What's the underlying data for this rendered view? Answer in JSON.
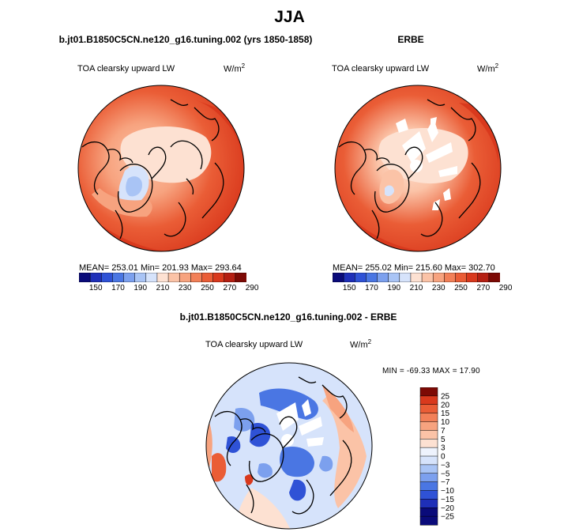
{
  "chart_data": {
    "type": "polar-contour-map",
    "season": "JJA",
    "colors_main": [
      "#0a0b7a",
      "#1e2fb8",
      "#2f52d6",
      "#4a76e3",
      "#7ca0ee",
      "#a9c4f5",
      "#d6e3fb",
      "#fde1d2",
      "#fbc3a7",
      "#f7a37f",
      "#f28058",
      "#ea5d36",
      "#d9391d",
      "#b51f12",
      "#7d0a05"
    ],
    "colors_diff": [
      "#0a0b7a",
      "#1e2fb8",
      "#2f52d6",
      "#4a76e3",
      "#7ca0ee",
      "#a9c4f5",
      "#d6e3fb",
      "#eef3fd",
      "#fde1d2",
      "#fbc3a7",
      "#f7a37f",
      "#f28058",
      "#ea5d36",
      "#d9391d",
      "#7d0a05"
    ],
    "panels": [
      {
        "name": "model",
        "case_title": "b.jt01.B1850C5CN.ne120_g16.tuning.002 (yrs 1850-1858)",
        "variable": "TOA clearsky upward LW",
        "units_base": "W/m",
        "units_exp": "2",
        "stats": "MEAN= 253.01  Min= 201.93  Max= 293.64",
        "mean": 253.01,
        "min": 201.93,
        "max": 293.64,
        "colorbar_ticks": [
          "150",
          "170",
          "190",
          "210",
          "230",
          "250",
          "270",
          "290"
        ],
        "levels": [
          140,
          150,
          160,
          170,
          180,
          190,
          200,
          210,
          220,
          230,
          240,
          250,
          260,
          270,
          280,
          290
        ]
      },
      {
        "name": "obs",
        "case_title": "ERBE",
        "variable": "TOA clearsky upward LW",
        "units_base": "W/m",
        "units_exp": "2",
        "stats": "MEAN= 255.02  Min= 215.60  Max= 302.70",
        "mean": 255.02,
        "min": 215.6,
        "max": 302.7,
        "colorbar_ticks": [
          "150",
          "170",
          "190",
          "210",
          "230",
          "250",
          "270",
          "290"
        ],
        "levels": [
          140,
          150,
          160,
          170,
          180,
          190,
          200,
          210,
          220,
          230,
          240,
          250,
          260,
          270,
          280,
          290
        ]
      },
      {
        "name": "difference",
        "case_title": "b.jt01.B1850C5CN.ne120_g16.tuning.002 - ERBE",
        "variable": "TOA clearsky upward LW",
        "units_base": "W/m",
        "units_exp": "2",
        "stats": "MIN = -69.33 MAX = 17.90",
        "min": -69.33,
        "max": 17.9,
        "colorbar_ticks": [
          "25",
          "20",
          "15",
          "10",
          "7",
          "5",
          "3",
          "0",
          "−3",
          "−5",
          "−7",
          "−10",
          "−15",
          "−20",
          "−25"
        ]
      }
    ]
  }
}
